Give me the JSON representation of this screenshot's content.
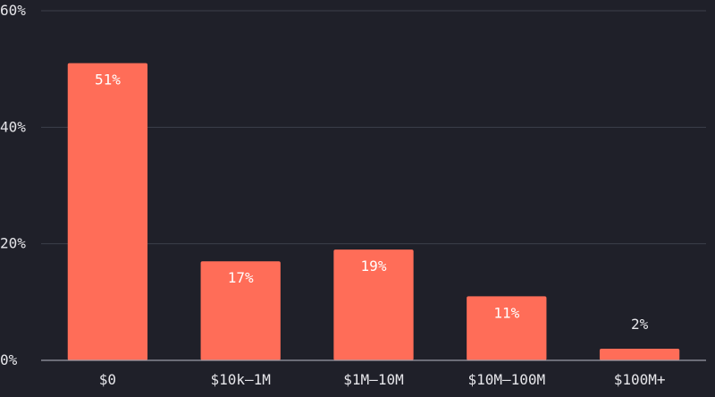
{
  "chart_data": {
    "type": "bar",
    "title": "",
    "xlabel": "",
    "ylabel": "",
    "categories": [
      "$0",
      "$10k–1M",
      "$1M–10M",
      "$10M–100M",
      "$100M+"
    ],
    "values": [
      51,
      17,
      19,
      11,
      2
    ],
    "data_labels": [
      "51%",
      "17%",
      "19%",
      "11%",
      "2%"
    ],
    "ylim": [
      0,
      60
    ],
    "yticks": [
      0,
      20,
      40,
      60
    ],
    "ytick_labels": [
      "0%",
      "20%",
      "40%",
      "60%"
    ],
    "grid": true,
    "legend": "none",
    "colors": {
      "background": "#1f2029",
      "bar": "#ff6d58",
      "grid": "#3d3f4b",
      "axis": "#9a9ba6",
      "text": "#e6e6ea"
    }
  }
}
